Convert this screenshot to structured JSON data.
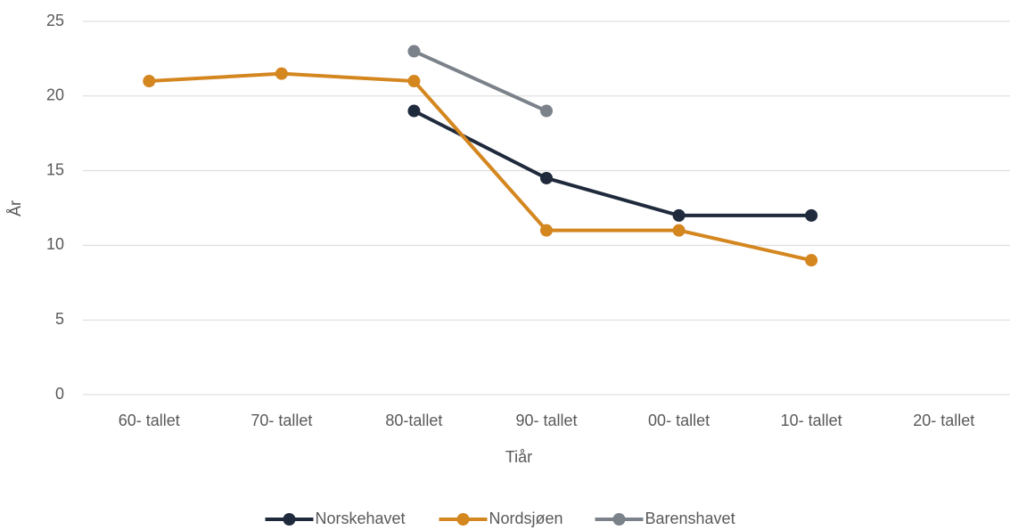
{
  "chart_data": {
    "type": "line",
    "x_label": "Tiår",
    "y_label": "År",
    "categories": [
      "60- tallet",
      "70- tallet",
      "80-tallet",
      "90- tallet",
      "00- tallet",
      "10- tallet",
      "20- tallet"
    ],
    "series": [
      {
        "name": "Norskehavet",
        "color": "#1f2a3c",
        "values": [
          null,
          null,
          19,
          14.5,
          12,
          12,
          null
        ]
      },
      {
        "name": "Nordsjøen",
        "color": "#d4861f",
        "values": [
          21,
          21.5,
          21,
          11,
          11,
          9,
          null
        ]
      },
      {
        "name": "Barenshavet",
        "color": "#7b828a",
        "values": [
          null,
          null,
          23,
          19,
          null,
          null,
          null
        ]
      }
    ],
    "ylim": [
      0,
      25
    ],
    "yticks": [
      0,
      5,
      10,
      15,
      20,
      25
    ],
    "grid": true,
    "legend": "bottom"
  }
}
